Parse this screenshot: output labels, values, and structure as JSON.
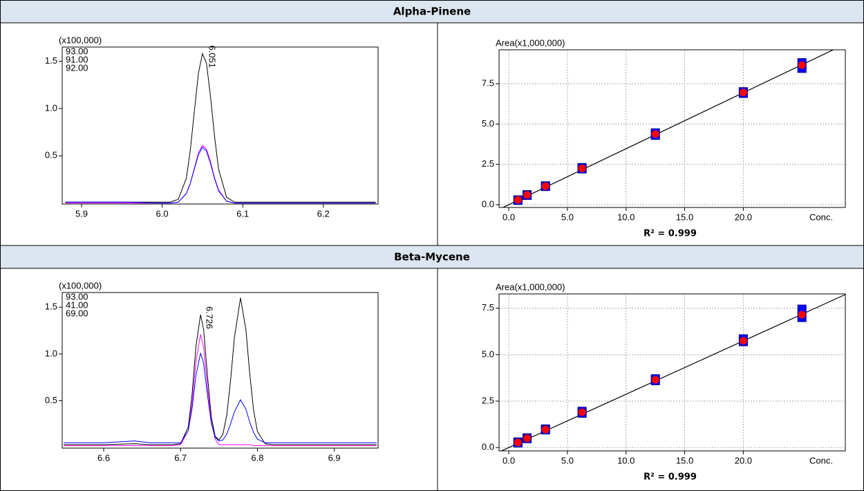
{
  "table": {
    "headers": [
      "Alpha-Pinene",
      "Beta-Mycene"
    ]
  },
  "chart_data": [
    {
      "type": "line",
      "ylabel": "(x100,000)",
      "x": [
        5.88,
        5.95,
        6.0,
        6.01,
        6.02,
        6.03,
        6.035,
        6.04,
        6.045,
        6.05,
        6.055,
        6.06,
        6.065,
        6.07,
        6.08,
        6.09,
        6.1,
        6.15,
        6.2,
        6.265
      ],
      "series": [
        {
          "name": "93.00",
          "color": "#000000",
          "values": [
            0.01,
            0.01,
            0.01,
            0.01,
            0.04,
            0.26,
            0.56,
            0.97,
            1.37,
            1.58,
            1.48,
            1.13,
            0.71,
            0.36,
            0.06,
            0.01,
            0.01,
            0.01,
            0.01,
            0.01
          ]
        },
        {
          "name": "91.00",
          "color": "#ff00ff",
          "values": [
            0,
            0,
            0,
            0,
            0.01,
            0.1,
            0.21,
            0.37,
            0.53,
            0.61,
            0.57,
            0.44,
            0.27,
            0.14,
            0.02,
            0,
            0,
            0,
            0,
            0
          ]
        },
        {
          "name": "92.00",
          "color": "#0000ff",
          "values": [
            0.01,
            0.01,
            0,
            0,
            0.01,
            0.1,
            0.21,
            0.36,
            0.51,
            0.59,
            0.55,
            0.42,
            0.26,
            0.13,
            0.02,
            0,
            0,
            0,
            0,
            0
          ]
        }
      ],
      "annotations": [
        {
          "x": 6.051,
          "y": 1.58
        }
      ],
      "xlim": [
        5.876,
        6.268
      ],
      "ylim": [
        -0.01,
        1.65
      ],
      "xticks": [
        5.9,
        {
          "value": 6,
          "label": "6.0"
        },
        6.1,
        6.2
      ],
      "yticks": [
        0.5,
        {
          "value": 1,
          "label": "1.0"
        },
        1.5
      ]
    },
    {
      "type": "scatter",
      "ylabel": "Area(x1,000,000)",
      "xlabel": "Conc.",
      "x": [
        0.78,
        1.56,
        3.13,
        6.25,
        12.5,
        20,
        25
      ],
      "series": [
        {
          "color": "#0000ff",
          "marker": "square",
          "values": [
            0.3,
            0.62,
            1.17,
            2.3,
            4.45,
            7.0,
            8.8
          ]
        },
        {
          "color": "#0000ff",
          "marker": "square",
          "values": [
            0.27,
            0.58,
            1.13,
            2.22,
            4.3,
            6.9,
            8.45
          ]
        },
        {
          "color": "#ff0000",
          "marker": "circle",
          "values": [
            0.3,
            0.6,
            1.15,
            2.25,
            4.38,
            6.95,
            8.65
          ]
        }
      ],
      "fit": {
        "slope": 0.347,
        "intercept": 0
      },
      "annotation": "R² = 0.999",
      "xlim": [
        -0.83,
        28.7
      ],
      "ylim": [
        -0.17,
        9.6
      ],
      "grid": true,
      "xticks": [
        {
          "value": 0,
          "label": "0.0"
        },
        {
          "value": 5,
          "label": "5.0"
        },
        {
          "value": 10,
          "label": "10.0"
        },
        {
          "value": 15,
          "label": "15.0"
        },
        {
          "value": 20,
          "label": "20.0"
        }
      ],
      "yticks": [
        {
          "value": 0,
          "label": "0.0"
        },
        2.5,
        {
          "value": 5,
          "label": "5.0"
        },
        7.5
      ]
    },
    {
      "type": "line",
      "ylabel": "(x100,000)",
      "x": [
        6.548,
        6.6,
        6.64,
        6.66,
        6.69,
        6.7,
        6.71,
        6.715,
        6.72,
        6.726,
        6.73,
        6.735,
        6.74,
        6.745,
        6.75,
        6.755,
        6.76,
        6.765,
        6.77,
        6.778,
        6.785,
        6.79,
        6.795,
        6.8,
        6.81,
        6.82,
        6.85,
        6.955
      ],
      "series": [
        {
          "name": "93.00",
          "color": "#000000",
          "values": [
            0.03,
            0.03,
            0.04,
            0.03,
            0.03,
            0.04,
            0.22,
            0.57,
            1.08,
            1.42,
            1.26,
            0.77,
            0.33,
            0.12,
            0.08,
            0.14,
            0.34,
            0.71,
            1.17,
            1.6,
            1.26,
            0.79,
            0.4,
            0.17,
            0.04,
            0.03,
            0.03,
            0.03
          ]
        },
        {
          "name": "41.00",
          "color": "#ff00ff",
          "values": [
            0.02,
            0.02,
            0.02,
            0.02,
            0.02,
            0.03,
            0.18,
            0.48,
            0.92,
            1.21,
            1.07,
            0.65,
            0.28,
            0.09,
            0.03,
            0.03,
            0.03,
            0.03,
            0.03,
            0.03,
            0.03,
            0.03,
            0.02,
            0.02,
            0.02,
            0.02,
            0.02,
            0.02
          ]
        },
        {
          "name": "69.00",
          "color": "#0000ff",
          "values": [
            0.05,
            0.05,
            0.07,
            0.05,
            0.05,
            0.05,
            0.18,
            0.42,
            0.77,
            1.01,
            0.9,
            0.56,
            0.26,
            0.11,
            0.07,
            0.08,
            0.14,
            0.25,
            0.38,
            0.51,
            0.41,
            0.27,
            0.16,
            0.09,
            0.05,
            0.05,
            0.05,
            0.05
          ]
        }
      ],
      "annotations": [
        {
          "x": 6.726,
          "y": 1.42
        }
      ],
      "xlim": [
        6.546,
        6.957
      ],
      "ylim": [
        -0.007,
        1.657
      ],
      "xticks": [
        6.6,
        6.7,
        6.8,
        6.9
      ],
      "yticks": [
        0.5,
        {
          "value": 1,
          "label": "1.0"
        },
        1.5
      ]
    },
    {
      "type": "scatter",
      "ylabel": "Area(x1,000,000)",
      "xlabel": "Conc.",
      "x": [
        0.78,
        1.56,
        3.13,
        6.25,
        12.5,
        20,
        25
      ],
      "series": [
        {
          "color": "#0000ff",
          "marker": "square",
          "values": [
            0.3,
            0.52,
            1.0,
            1.95,
            3.7,
            5.85,
            7.45
          ]
        },
        {
          "color": "#0000ff",
          "marker": "square",
          "values": [
            0.25,
            0.48,
            0.95,
            1.85,
            3.6,
            5.7,
            7.0
          ]
        },
        {
          "color": "#ff0000",
          "marker": "circle",
          "values": [
            0.27,
            0.5,
            0.97,
            1.9,
            3.65,
            5.75,
            7.15
          ]
        }
      ],
      "fit": {
        "slope": 0.287,
        "intercept": 0
      },
      "annotation": "R² = 0.999",
      "xlim": [
        -0.83,
        28.7
      ],
      "ylim": [
        -0.18,
        8.27
      ],
      "grid": true,
      "xticks": [
        {
          "value": 0,
          "label": "0.0"
        },
        {
          "value": 5,
          "label": "5.0"
        },
        {
          "value": 10,
          "label": "10.0"
        },
        {
          "value": 15,
          "label": "15.0"
        },
        {
          "value": 20,
          "label": "20.0"
        }
      ],
      "yticks": [
        {
          "value": 0,
          "label": "0.0"
        },
        2.5,
        {
          "value": 5,
          "label": "5.0"
        },
        7.5
      ]
    }
  ]
}
